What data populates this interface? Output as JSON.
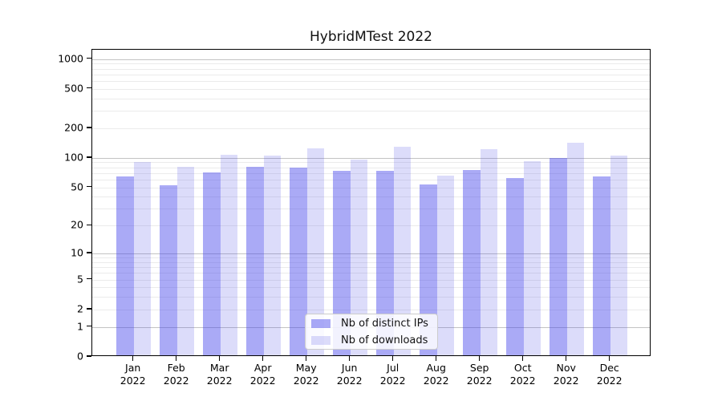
{
  "title": "HybridMTest 2022",
  "chart_data": {
    "type": "bar",
    "title": "HybridMTest 2022",
    "categories": [
      "Jan 2022",
      "Feb 2022",
      "Mar 2022",
      "Apr 2022",
      "May 2022",
      "Jun 2022",
      "Jul 2022",
      "Aug 2022",
      "Sep 2022",
      "Oct 2022",
      "Nov 2022",
      "Dec 2022"
    ],
    "series": [
      {
        "name": "Nb of distinct IPs",
        "color": "rgba(67,67,235,0.45)",
        "values": [
          62,
          51,
          68,
          78,
          76,
          71,
          71,
          52,
          72,
          60,
          97,
          62
        ]
      },
      {
        "name": "Nb of downloads",
        "color": "rgba(82,82,230,0.20)",
        "values": [
          87,
          78,
          103,
          102,
          120,
          92,
          125,
          63,
          119,
          89,
          138,
          101
        ]
      }
    ],
    "yscale": "log1p",
    "yticks": [
      0,
      1,
      2,
      5,
      10,
      20,
      50,
      100,
      200,
      500,
      1000
    ],
    "major_grid_values": [
      1,
      10,
      100,
      1000
    ],
    "ylim": [
      0,
      1240
    ],
    "grid": "both",
    "legend_position": "lower center",
    "colors": {
      "major_grid": "#c3c3c3",
      "minor_grid": "#ebebeb",
      "axis": "#000000",
      "background": "#ffffff"
    }
  }
}
